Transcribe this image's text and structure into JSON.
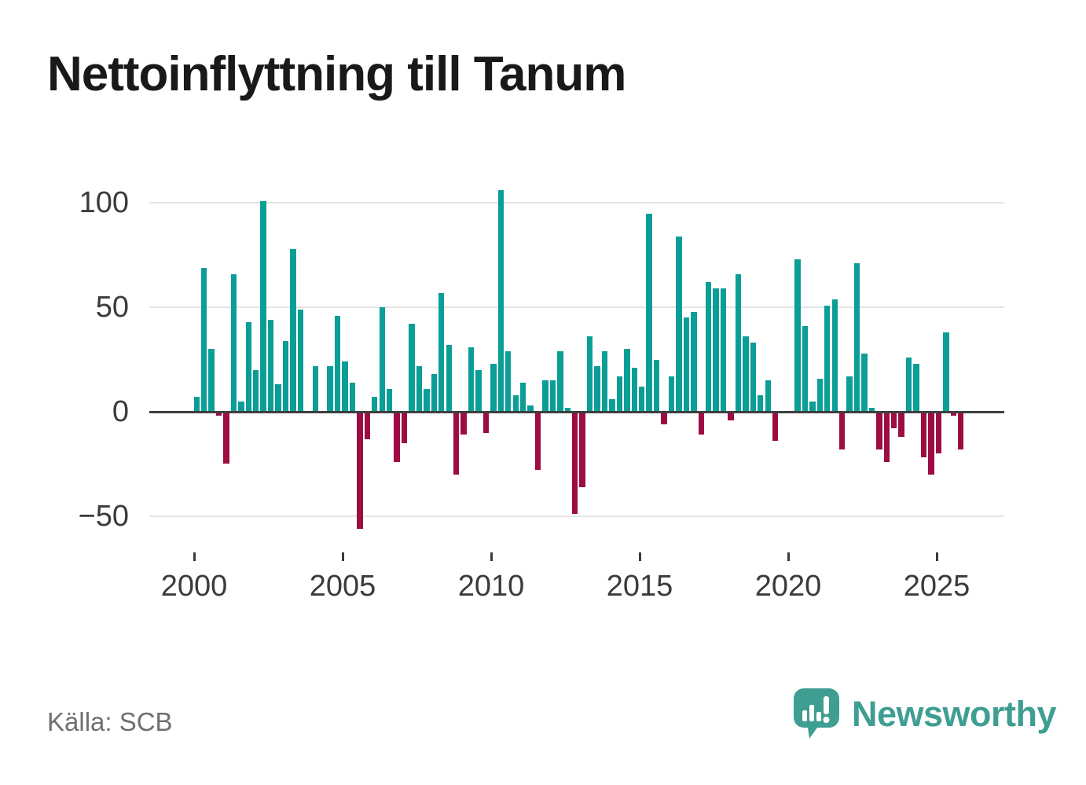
{
  "header": {
    "title": "Nettoinflyttning till Tanum"
  },
  "footer": {
    "source": "Källa: SCB"
  },
  "branding": {
    "logo_text": "Newsworthy",
    "logo_icon": "speech-bubble-bar-chart",
    "logo_color": "#3f9e92"
  },
  "chart_data": {
    "type": "bar",
    "title": "Nettoinflyttning till Tanum",
    "frequency": "quarterly",
    "x_start": "2000Q1",
    "x_end": "2025Q4",
    "quarters": [
      "2000Q1",
      "2000Q2",
      "2000Q3",
      "2000Q4",
      "2001Q1",
      "2001Q2",
      "2001Q3",
      "2001Q4",
      "2002Q1",
      "2002Q2",
      "2002Q3",
      "2002Q4",
      "2003Q1",
      "2003Q2",
      "2003Q3",
      "2003Q4",
      "2004Q1",
      "2004Q2",
      "2004Q3",
      "2004Q4",
      "2005Q1",
      "2005Q2",
      "2005Q3",
      "2005Q4",
      "2006Q1",
      "2006Q2",
      "2006Q3",
      "2006Q4",
      "2007Q1",
      "2007Q2",
      "2007Q3",
      "2007Q4",
      "2008Q1",
      "2008Q2",
      "2008Q3",
      "2008Q4",
      "2009Q1",
      "2009Q2",
      "2009Q3",
      "2009Q4",
      "2010Q1",
      "2010Q2",
      "2010Q3",
      "2010Q4",
      "2011Q1",
      "2011Q2",
      "2011Q3",
      "2011Q4",
      "2012Q1",
      "2012Q2",
      "2012Q3",
      "2012Q4",
      "2013Q1",
      "2013Q2",
      "2013Q3",
      "2013Q4",
      "2014Q1",
      "2014Q2",
      "2014Q3",
      "2014Q4",
      "2015Q1",
      "2015Q2",
      "2015Q3",
      "2015Q4",
      "2016Q1",
      "2016Q2",
      "2016Q3",
      "2016Q4",
      "2017Q1",
      "2017Q2",
      "2017Q3",
      "2017Q4",
      "2018Q1",
      "2018Q2",
      "2018Q3",
      "2018Q4",
      "2019Q1",
      "2019Q2",
      "2019Q3",
      "2019Q4",
      "2020Q1",
      "2020Q2",
      "2020Q3",
      "2020Q4",
      "2021Q1",
      "2021Q2",
      "2021Q3",
      "2021Q4",
      "2022Q1",
      "2022Q2",
      "2022Q3",
      "2022Q4",
      "2023Q1",
      "2023Q2",
      "2023Q3",
      "2023Q4",
      "2024Q1",
      "2024Q2",
      "2024Q3",
      "2024Q4",
      "2025Q1",
      "2025Q2",
      "2025Q3",
      "2025Q4"
    ],
    "values": [
      7,
      69,
      30,
      -2,
      -25,
      66,
      5,
      43,
      20,
      101,
      44,
      13,
      34,
      78,
      49,
      0,
      22,
      0,
      22,
      46,
      24,
      14,
      -56,
      -13,
      7,
      50,
      11,
      -24,
      -15,
      42,
      22,
      11,
      18,
      57,
      32,
      -30,
      -11,
      31,
      20,
      -10,
      23,
      106,
      29,
      8,
      14,
      3,
      -28,
      15,
      15,
      29,
      2,
      -49,
      -36,
      36,
      22,
      29,
      6,
      17,
      30,
      21,
      12,
      95,
      25,
      -6,
      17,
      84,
      45,
      48,
      -11,
      62,
      59,
      59,
      -4,
      66,
      36,
      33,
      8,
      15,
      -14,
      0,
      0,
      73,
      41,
      5,
      16,
      51,
      54,
      -18,
      17,
      71,
      28,
      2,
      -18,
      -24,
      -8,
      -12,
      26,
      23,
      -22,
      -30,
      -20,
      38,
      -2,
      -18
    ],
    "x_tick_labels": [
      "2000",
      "2005",
      "2010",
      "2015",
      "2020",
      "2025"
    ],
    "y_tick_labels": [
      "100",
      "50",
      "0",
      "−50"
    ],
    "y_tick_values": [
      100,
      50,
      0,
      -50
    ],
    "ylim": [
      -66,
      111
    ],
    "xlabel": "",
    "ylabel": "",
    "grid": true,
    "legend_position": "none",
    "colors": {
      "positive": "#0a9e97",
      "negative": "#9d0c43",
      "axis": "#3f3f3f",
      "gridline": "#e4e4e4"
    }
  }
}
